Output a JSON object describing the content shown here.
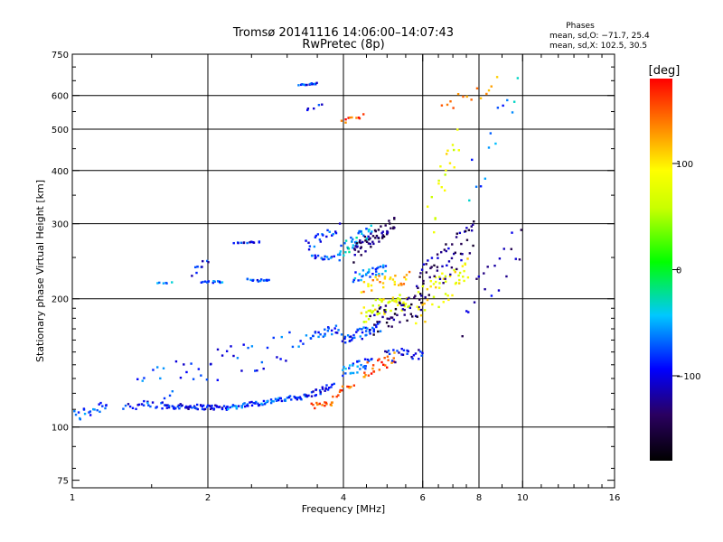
{
  "chart_data": {
    "type": "scatter",
    "title": "Tromsø 20141116 14:06:00–14:07:43",
    "subtitle": "RwPretec (8p)",
    "stats": {
      "heading": "Phases",
      "line1": "mean, sd,O: −71.7, 25.4",
      "line2": "mean, sd,X: 102.5, 30.5"
    },
    "xlabel": "Frequency [MHz]",
    "ylabel": "Stationary phase Virtual Height [km]",
    "xscale": "log2",
    "yscale": "log",
    "xlim": [
      1,
      16
    ],
    "ylim": [
      72,
      750
    ],
    "xticks": [
      1,
      2,
      4,
      6,
      8,
      10,
      16
    ],
    "xtick_labels": [
      "1",
      "2",
      "4",
      "6",
      "8",
      "10",
      "16"
    ],
    "xgrid": [
      2,
      4,
      6,
      8,
      10
    ],
    "yticks": [
      75,
      100,
      200,
      300,
      400,
      500,
      600,
      750
    ],
    "ytick_labels": [
      "75",
      "100",
      "200",
      "300",
      "400",
      "500",
      "600",
      "750"
    ],
    "ygrid": [
      100,
      200,
      300,
      400,
      500,
      600
    ],
    "grid": true,
    "colorbar": {
      "label": "[deg]",
      "range": [
        -180,
        180
      ],
      "ticks": [
        100,
        0,
        -100
      ],
      "tick_labels": [
        "100",
        "0",
        "−100"
      ]
    },
    "traces": [
      {
        "f0": 1.0,
        "f1": 1.2,
        "h0": 105,
        "h1": 114,
        "phase": -75,
        "spread": 4,
        "n": 22
      },
      {
        "f0": 1.3,
        "f1": 1.6,
        "h0": 112,
        "h1": 112,
        "phase": -90,
        "spread": 3,
        "n": 20
      },
      {
        "f0": 1.6,
        "f1": 2.2,
        "h0": 112,
        "h1": 111,
        "phase": -100,
        "spread": 1.5,
        "n": 60
      },
      {
        "f0": 2.2,
        "f1": 3.3,
        "h0": 111,
        "h1": 118,
        "phase": -75,
        "spread": 1.5,
        "n": 70
      },
      {
        "f0": 3.3,
        "f1": 3.8,
        "h0": 118,
        "h1": 125,
        "phase": -95,
        "spread": 2,
        "n": 25
      },
      {
        "f0": 3.4,
        "f1": 3.8,
        "h0": 112,
        "h1": 114,
        "phase": 140,
        "spread": 1.5,
        "n": 16
      },
      {
        "f0": 3.8,
        "f1": 4.2,
        "h0": 119,
        "h1": 126,
        "phase": 150,
        "spread": 2,
        "n": 12
      },
      {
        "f0": 1.4,
        "f1": 3.4,
        "h0": 125,
        "h1": 160,
        "phase": -80,
        "spread": 14,
        "n": 50
      },
      {
        "f0": 1.55,
        "f1": 1.65,
        "h0": 218,
        "h1": 218,
        "phase": -60,
        "spread": 1,
        "n": 6
      },
      {
        "f0": 1.85,
        "f1": 2.0,
        "h0": 230,
        "h1": 245,
        "phase": -95,
        "spread": 6,
        "n": 10
      },
      {
        "f0": 1.95,
        "f1": 2.15,
        "h0": 219,
        "h1": 219,
        "phase": -70,
        "spread": 1,
        "n": 14
      },
      {
        "f0": 2.3,
        "f1": 2.6,
        "h0": 270,
        "h1": 272,
        "phase": -95,
        "spread": 1,
        "n": 14
      },
      {
        "f0": 2.45,
        "f1": 2.75,
        "h0": 222,
        "h1": 220,
        "phase": -80,
        "spread": 1.5,
        "n": 14
      },
      {
        "f0": 3.2,
        "f1": 3.5,
        "h0": 635,
        "h1": 640,
        "phase": -80,
        "spread": 3,
        "n": 16
      },
      {
        "f0": 3.3,
        "f1": 3.6,
        "h0": 555,
        "h1": 570,
        "phase": -85,
        "spread": 4,
        "n": 5
      },
      {
        "f0": 3.3,
        "f1": 3.9,
        "h0": 265,
        "h1": 290,
        "phase": -85,
        "spread": 12,
        "n": 20
      },
      {
        "f0": 3.4,
        "f1": 3.8,
        "h0": 250,
        "h1": 250,
        "phase": -80,
        "spread": 3,
        "n": 16
      },
      {
        "f0": 3.4,
        "f1": 3.9,
        "h0": 165,
        "h1": 170,
        "phase": -80,
        "spread": 4,
        "n": 22
      },
      {
        "f0": 4.0,
        "f1": 4.4,
        "h0": 520,
        "h1": 540,
        "phase": 160,
        "spread": 6,
        "n": 10
      },
      {
        "f0": 3.9,
        "f1": 4.6,
        "h0": 255,
        "h1": 290,
        "phase": -50,
        "spread": 10,
        "n": 40
      },
      {
        "f0": 4.2,
        "f1": 5.2,
        "h0": 255,
        "h1": 300,
        "phase": -135,
        "spread": 12,
        "n": 60
      },
      {
        "f0": 4.2,
        "f1": 5.0,
        "h0": 225,
        "h1": 235,
        "phase": -65,
        "spread": 6,
        "n": 30
      },
      {
        "f0": 4.4,
        "f1": 5.6,
        "h0": 215,
        "h1": 225,
        "phase": 120,
        "spread": 8,
        "n": 30
      },
      {
        "f0": 4.0,
        "f1": 4.8,
        "h0": 160,
        "h1": 172,
        "phase": -80,
        "spread": 5,
        "n": 40
      },
      {
        "f0": 4.4,
        "f1": 5.6,
        "h0": 185,
        "h1": 200,
        "phase": 80,
        "spread": 10,
        "n": 50
      },
      {
        "f0": 4.6,
        "f1": 6.0,
        "h0": 175,
        "h1": 195,
        "phase": -140,
        "spread": 12,
        "n": 50
      },
      {
        "f0": 4.0,
        "f1": 4.6,
        "h0": 135,
        "h1": 142,
        "phase": -70,
        "spread": 4,
        "n": 30
      },
      {
        "f0": 4.4,
        "f1": 5.2,
        "h0": 135,
        "h1": 145,
        "phase": 150,
        "spread": 5,
        "n": 25
      },
      {
        "f0": 5.0,
        "f1": 6.0,
        "h0": 145,
        "h1": 150,
        "phase": -100,
        "spread": 6,
        "n": 25
      },
      {
        "f0": 5.8,
        "f1": 7.6,
        "h0": 190,
        "h1": 230,
        "phase": 90,
        "spread": 20,
        "n": 50
      },
      {
        "f0": 5.8,
        "f1": 7.8,
        "h0": 210,
        "h1": 280,
        "phase": -130,
        "spread": 25,
        "n": 60
      },
      {
        "f0": 6.2,
        "f1": 7.2,
        "h0": 300,
        "h1": 470,
        "phase": 80,
        "spread": 40,
        "n": 20
      },
      {
        "f0": 6.6,
        "f1": 8.8,
        "h0": 560,
        "h1": 640,
        "phase": 140,
        "spread": 25,
        "n": 14
      },
      {
        "f0": 7.6,
        "f1": 9.8,
        "h0": 350,
        "h1": 650,
        "phase": -60,
        "spread": 60,
        "n": 14
      },
      {
        "f0": 7.4,
        "f1": 10.0,
        "h0": 170,
        "h1": 280,
        "phase": -120,
        "spread": 30,
        "n": 20
      }
    ]
  }
}
